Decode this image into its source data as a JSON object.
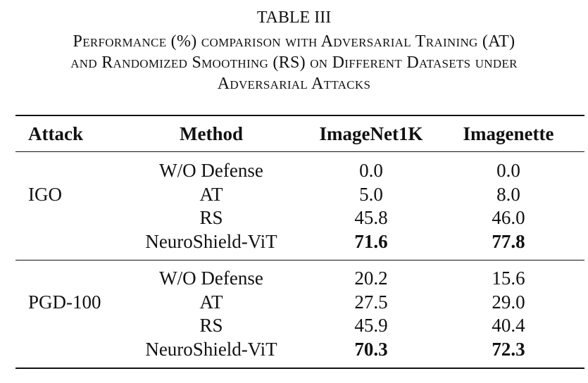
{
  "caption": {
    "label": "TABLE III",
    "lines": [
      "Performance (%) comparison with Adversarial Training (AT)",
      "and Randomized Smoothing (RS) on Different Datasets under",
      "Adversarial Attacks"
    ]
  },
  "table": {
    "header": [
      "Attack",
      "Method",
      "ImageNet1K",
      "Imagenette"
    ],
    "groups": [
      {
        "attack": "IGO",
        "rows": [
          [
            "W/O Defense",
            "0.0",
            "0.0"
          ],
          [
            "AT",
            "5.0",
            "8.0"
          ],
          [
            "RS",
            "45.8",
            "46.0"
          ],
          [
            "NeuroShield-ViT",
            "71.6",
            "77.8"
          ]
        ]
      },
      {
        "attack": "PGD-100",
        "rows": [
          [
            "W/O Defense",
            "20.2",
            "15.6"
          ],
          [
            "AT",
            "27.5",
            "29.0"
          ],
          [
            "RS",
            "45.9",
            "40.4"
          ],
          [
            "NeuroShield-ViT",
            "70.3",
            "72.3"
          ]
        ]
      }
    ]
  }
}
